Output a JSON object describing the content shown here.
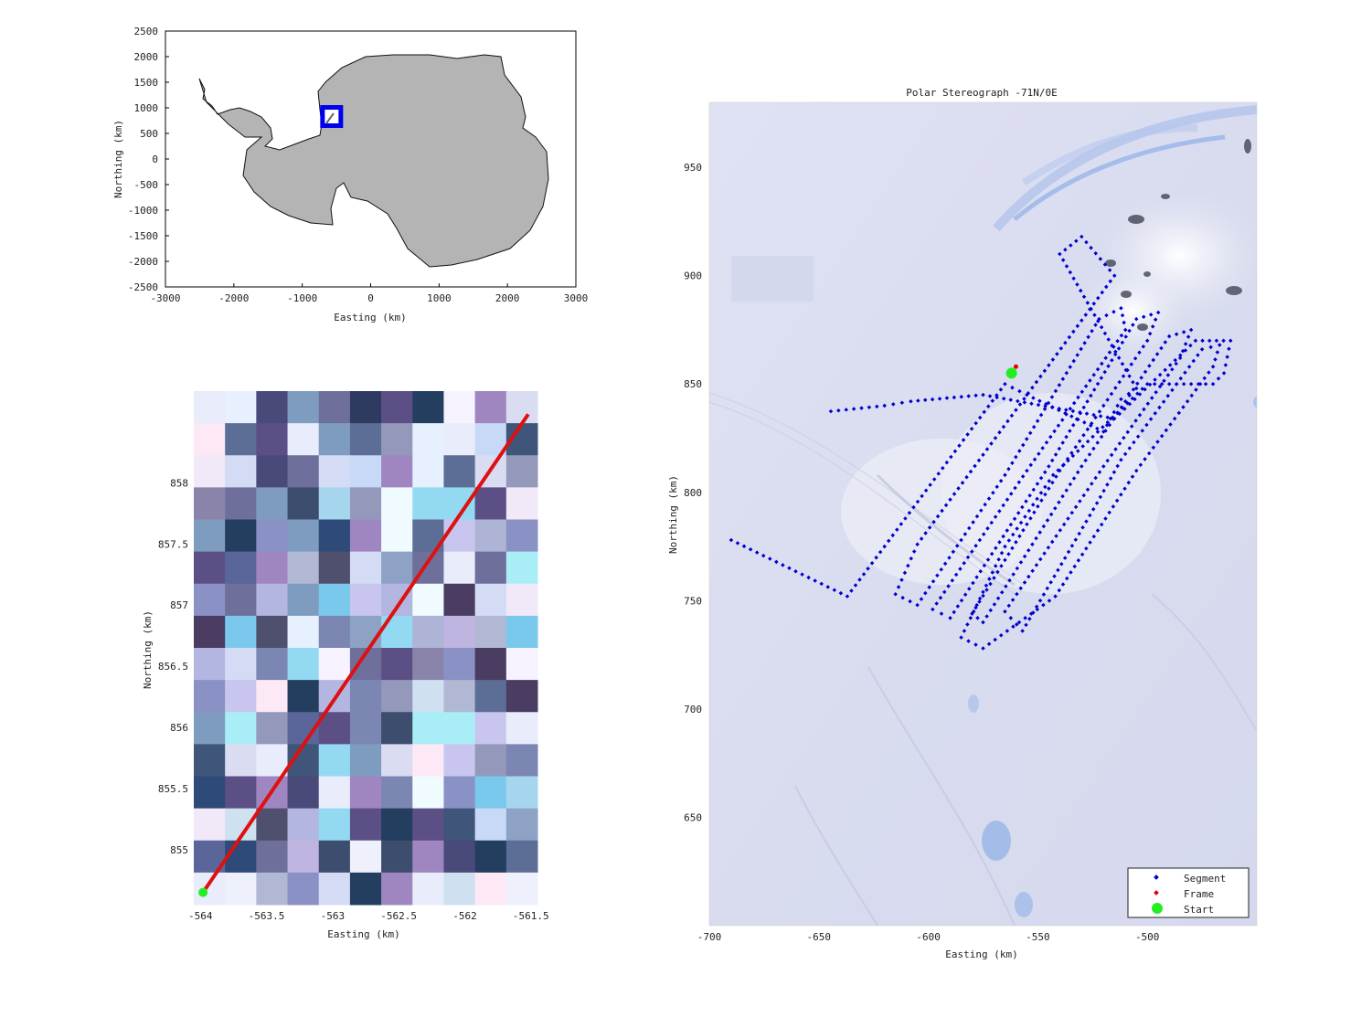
{
  "overview": {
    "xlabel": "Easting (km)",
    "ylabel": "Northing (km)",
    "xlim": [
      -3000,
      3000
    ],
    "ylim": [
      -2500,
      2500
    ],
    "xticks": [
      "-3000",
      "-2000",
      "-1000",
      "0",
      "1000",
      "2000",
      "3000"
    ],
    "yticks": [
      "2500",
      "2000",
      "1500",
      "1000",
      "500",
      "0",
      "-500",
      "-1000",
      "-1500",
      "-2000",
      "-2500"
    ],
    "continent_color": "#b4b4b4",
    "marker": {
      "easting": -570,
      "northing": 830,
      "color": "#0000ee"
    }
  },
  "zoom": {
    "xlabel": "Easting (km)",
    "ylabel": "Northing (km)",
    "xlim": [
      -564.05,
      -561.45
    ],
    "ylim": [
      854.55,
      858.75
    ],
    "xticks": [
      "-564",
      "-563.5",
      "-563",
      "-562.5",
      "-562",
      "-561.5"
    ],
    "yticks": [
      "858",
      "857.5",
      "857",
      "856.5",
      "856",
      "855.5",
      "855"
    ],
    "frame_line": {
      "start": [
        -563.98,
        854.65
      ],
      "end": [
        -561.52,
        858.56
      ],
      "color": "#dd1111"
    },
    "start_point": [
      -563.98,
      854.65
    ]
  },
  "main": {
    "title": "Polar Stereograph -71N/0E",
    "xlabel": "Easting (km)",
    "ylabel": "Northing (km)",
    "xlim": [
      -700,
      -450
    ],
    "ylim": [
      600,
      980
    ],
    "xticks": [
      "-700",
      "-650",
      "-600",
      "-550",
      "-500"
    ],
    "yticks": [
      "950",
      "900",
      "850",
      "800",
      "750",
      "700",
      "650"
    ],
    "segment_color": "#0000cc",
    "frame_color": "#dd0000",
    "start_color": "#22ee22",
    "start_point": [
      -562,
      855
    ],
    "frame_point": [
      -560,
      858
    ]
  },
  "legend": {
    "segment": "Segment",
    "frame": "Frame",
    "start": "Start"
  }
}
